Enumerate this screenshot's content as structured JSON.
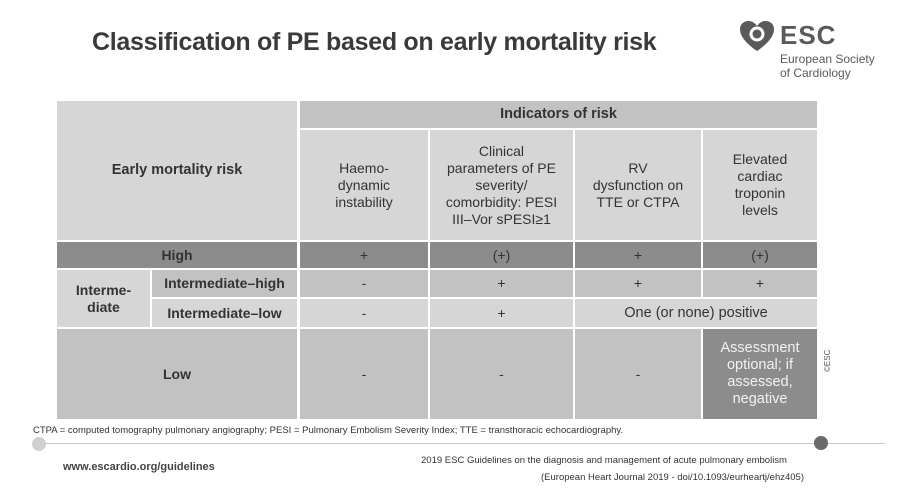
{
  "title": "Classification of PE based on early mortality risk",
  "logo": {
    "icon": "esc-heart-icon",
    "brand": "ESC",
    "line1": "European Society",
    "line2": "of Cardiology"
  },
  "table": {
    "indicators_header": "Indicators of risk",
    "early_mortality_header": "Early mortality risk",
    "columns": [
      "Haemo-\ndynamic\ninstability",
      "Clinical\nparameters of PE\nseverity/\ncomorbidity: PESI\nIII–Vor sPESI≥1",
      "RV\ndysfunction on\nTTE or CTPA",
      "Elevated\ncardiac\ntroponin\nlevels"
    ],
    "rows": {
      "high": {
        "label": "High",
        "values": [
          "+",
          "(+)",
          "+",
          "(+)"
        ]
      },
      "intermediate_group": "Interme-\ndiate",
      "intermediate_high": {
        "label": "Intermediate–high",
        "values": [
          "-",
          "+",
          "+",
          "+"
        ]
      },
      "intermediate_low": {
        "label": "Intermediate–low",
        "values": [
          "-",
          "+"
        ],
        "merged": "One (or none) positive"
      },
      "low": {
        "label": "Low",
        "values": [
          "-",
          "-",
          "-"
        ],
        "last": "Assessment\noptional; if\nassessed,\nnegative"
      }
    }
  },
  "footnote": "CTPA = computed tomography pulmonary angiography; PESI = Pulmonary Embolism Severity Index; TTE = transthoracic echocardiography.",
  "copyright": "©ESC",
  "footer": {
    "url": "www.escardio.org/guidelines",
    "guideline_line1": "2019 ESC Guidelines on the diagnosis and management of acute pulmonary embolism",
    "guideline_line2": "(European Heart Journal 2019 - doi/10.1093/eurheartj/ehz405)"
  }
}
